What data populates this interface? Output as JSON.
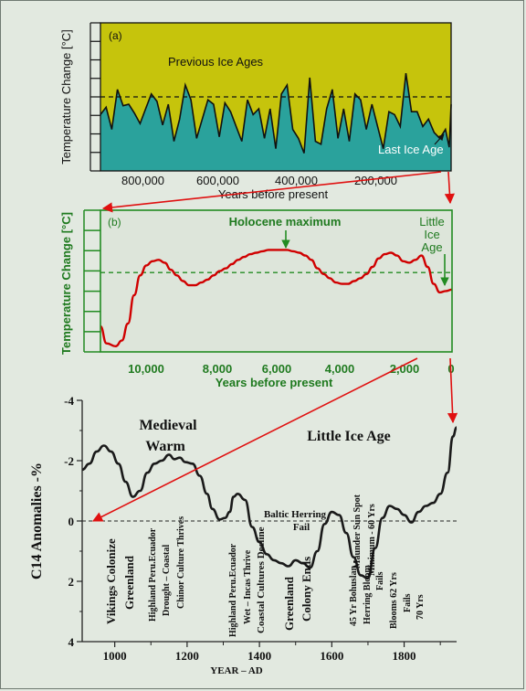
{
  "chart_data": [
    {
      "panel_label": "(a)",
      "type": "area",
      "ylabel": "Temperature Change [°C]",
      "xlabel": "Years before present",
      "x_ticks": [
        "800,000",
        "600,000",
        "400,000",
        "200,000"
      ],
      "annotations": [
        "Previous Ice Ages",
        "Last Ice Age"
      ],
      "colors": {
        "background": "#c6c40c",
        "fill": "#2aa29c",
        "reference_line": "#000000"
      },
      "x_range": [
        930000,
        0
      ],
      "reference_level": 0.5,
      "x": [
        930000,
        915000,
        900000,
        885000,
        870000,
        855000,
        840000,
        825000,
        810000,
        795000,
        780000,
        765000,
        750000,
        735000,
        720000,
        705000,
        690000,
        675000,
        660000,
        645000,
        630000,
        615000,
        600000,
        585000,
        570000,
        555000,
        540000,
        525000,
        510000,
        495000,
        480000,
        465000,
        450000,
        435000,
        420000,
        405000,
        390000,
        375000,
        360000,
        345000,
        330000,
        315000,
        300000,
        285000,
        270000,
        255000,
        240000,
        225000,
        210000,
        195000,
        180000,
        165000,
        150000,
        135000,
        120000,
        105000,
        90000,
        75000,
        60000,
        45000,
        30000,
        15000,
        5000,
        0
      ],
      "y": [
        0.38,
        0.43,
        0.28,
        0.55,
        0.44,
        0.45,
        0.39,
        0.32,
        0.42,
        0.52,
        0.47,
        0.31,
        0.45,
        0.2,
        0.35,
        0.58,
        0.48,
        0.22,
        0.35,
        0.48,
        0.45,
        0.23,
        0.46,
        0.4,
        0.3,
        0.2,
        0.48,
        0.38,
        0.42,
        0.22,
        0.42,
        0.15,
        0.52,
        0.58,
        0.28,
        0.22,
        0.12,
        0.63,
        0.2,
        0.18,
        0.42,
        0.55,
        0.22,
        0.42,
        0.2,
        0.52,
        0.48,
        0.28,
        0.45,
        0.3,
        0.15,
        0.4,
        0.38,
        0.3,
        0.66,
        0.4,
        0.4,
        0.3,
        0.35,
        0.26,
        0.22,
        0.28,
        0.16,
        0.45
      ]
    },
    {
      "panel_label": "(b)",
      "type": "line",
      "ylabel": "Temperature Change [°C]",
      "xlabel": "Years before present",
      "x_ticks": [
        "10,000",
        "8,000",
        "6,000",
        "4,000",
        "2,000",
        "0"
      ],
      "annotations": [
        "Holocene maximum",
        "Little",
        "Ice",
        "Age"
      ],
      "colors": {
        "line": "#d00000",
        "axes": "#228b22",
        "reference_line": "#228b22"
      },
      "x_range": [
        11500,
        0
      ],
      "reference_level": 0.56,
      "x": [
        11500,
        11300,
        11000,
        10800,
        10600,
        10400,
        10200,
        10000,
        9800,
        9600,
        9400,
        9200,
        9000,
        8800,
        8600,
        8400,
        8200,
        8000,
        7800,
        7600,
        7400,
        7200,
        7000,
        6800,
        6600,
        6400,
        6200,
        6000,
        5800,
        5600,
        5400,
        5200,
        5000,
        4800,
        4600,
        4400,
        4200,
        4000,
        3800,
        3600,
        3400,
        3200,
        3000,
        2800,
        2600,
        2400,
        2200,
        2000,
        1800,
        1600,
        1400,
        1200,
        1000,
        800,
        600,
        400,
        200,
        0
      ],
      "y": [
        0.18,
        0.06,
        0.04,
        0.08,
        0.2,
        0.4,
        0.54,
        0.61,
        0.64,
        0.65,
        0.63,
        0.58,
        0.54,
        0.5,
        0.47,
        0.47,
        0.49,
        0.51,
        0.54,
        0.57,
        0.59,
        0.62,
        0.65,
        0.67,
        0.69,
        0.7,
        0.71,
        0.72,
        0.72,
        0.72,
        0.72,
        0.71,
        0.7,
        0.68,
        0.65,
        0.59,
        0.55,
        0.52,
        0.49,
        0.48,
        0.48,
        0.5,
        0.52,
        0.55,
        0.6,
        0.66,
        0.69,
        0.7,
        0.68,
        0.64,
        0.63,
        0.65,
        0.68,
        0.6,
        0.48,
        0.42,
        0.43,
        0.44
      ]
    },
    {
      "type": "line",
      "ylabel": "C14 Anomalies -%",
      "xlabel": "YEAR – AD",
      "x_ticks": [
        "1000",
        "1200",
        "1400",
        "1600",
        "1800"
      ],
      "y_ticks": [
        "-4",
        "-2",
        "0",
        "2",
        "4"
      ],
      "ylim": [
        4,
        -4
      ],
      "xlim": [
        910,
        1945
      ],
      "grid": false,
      "colors": {
        "line": "#000000",
        "arrow": "#e01010"
      },
      "x": [
        910,
        930,
        950,
        970,
        990,
        1010,
        1030,
        1050,
        1070,
        1090,
        1110,
        1130,
        1150,
        1165,
        1180,
        1195,
        1215,
        1235,
        1255,
        1270,
        1290,
        1305,
        1318,
        1328,
        1340,
        1360,
        1380,
        1400,
        1420,
        1440,
        1460,
        1480,
        1500,
        1520,
        1540,
        1560,
        1580,
        1600,
        1620,
        1640,
        1660,
        1680,
        1700,
        1720,
        1740,
        1760,
        1780,
        1800,
        1820,
        1840,
        1860,
        1880,
        1900,
        1920,
        1935,
        1945
      ],
      "y": [
        -1.7,
        -1.9,
        -2.3,
        -2.5,
        -2.3,
        -1.9,
        -1.3,
        -0.8,
        -1.0,
        -1.6,
        -1.9,
        -2.0,
        -2.2,
        -2.05,
        -2.1,
        -1.95,
        -1.9,
        -1.5,
        -0.9,
        -0.4,
        -0.05,
        -0.1,
        -0.3,
        -0.8,
        -0.9,
        -0.7,
        0.2,
        0.7,
        1.1,
        1.3,
        1.4,
        1.5,
        1.3,
        1.4,
        1.55,
        1.0,
        0.1,
        -0.3,
        -0.2,
        0.4,
        1.2,
        1.8,
        1.9,
        0.9,
        -0.1,
        -0.5,
        -0.4,
        -0.2,
        0.05,
        -0.3,
        -0.5,
        -0.6,
        -0.9,
        -1.6,
        -2.8,
        -3.1
      ],
      "annotations": [
        "Medieval",
        "Warm",
        "Little Ice Age",
        "Baltic Herring",
        "Fail"
      ],
      "events": [
        "Vikings Colonize",
        "Greenland",
        "Highland Peru.Ecuador",
        "Drought – Coastal",
        "Chinor Culture Thrives",
        "Highland Peru.Ecuador",
        "Wet – Incas Thrive",
        "Coastal Cultures Decline",
        "Greenland",
        "Colony Ends",
        "45 Yr Bohuslan",
        "Herring Bloom",
        "Maunder Sun Spot",
        "Minimum - 60 Yrs",
        "Fails",
        "Blooms 62 Yrs",
        "Fails",
        "70 Yrs"
      ]
    }
  ]
}
